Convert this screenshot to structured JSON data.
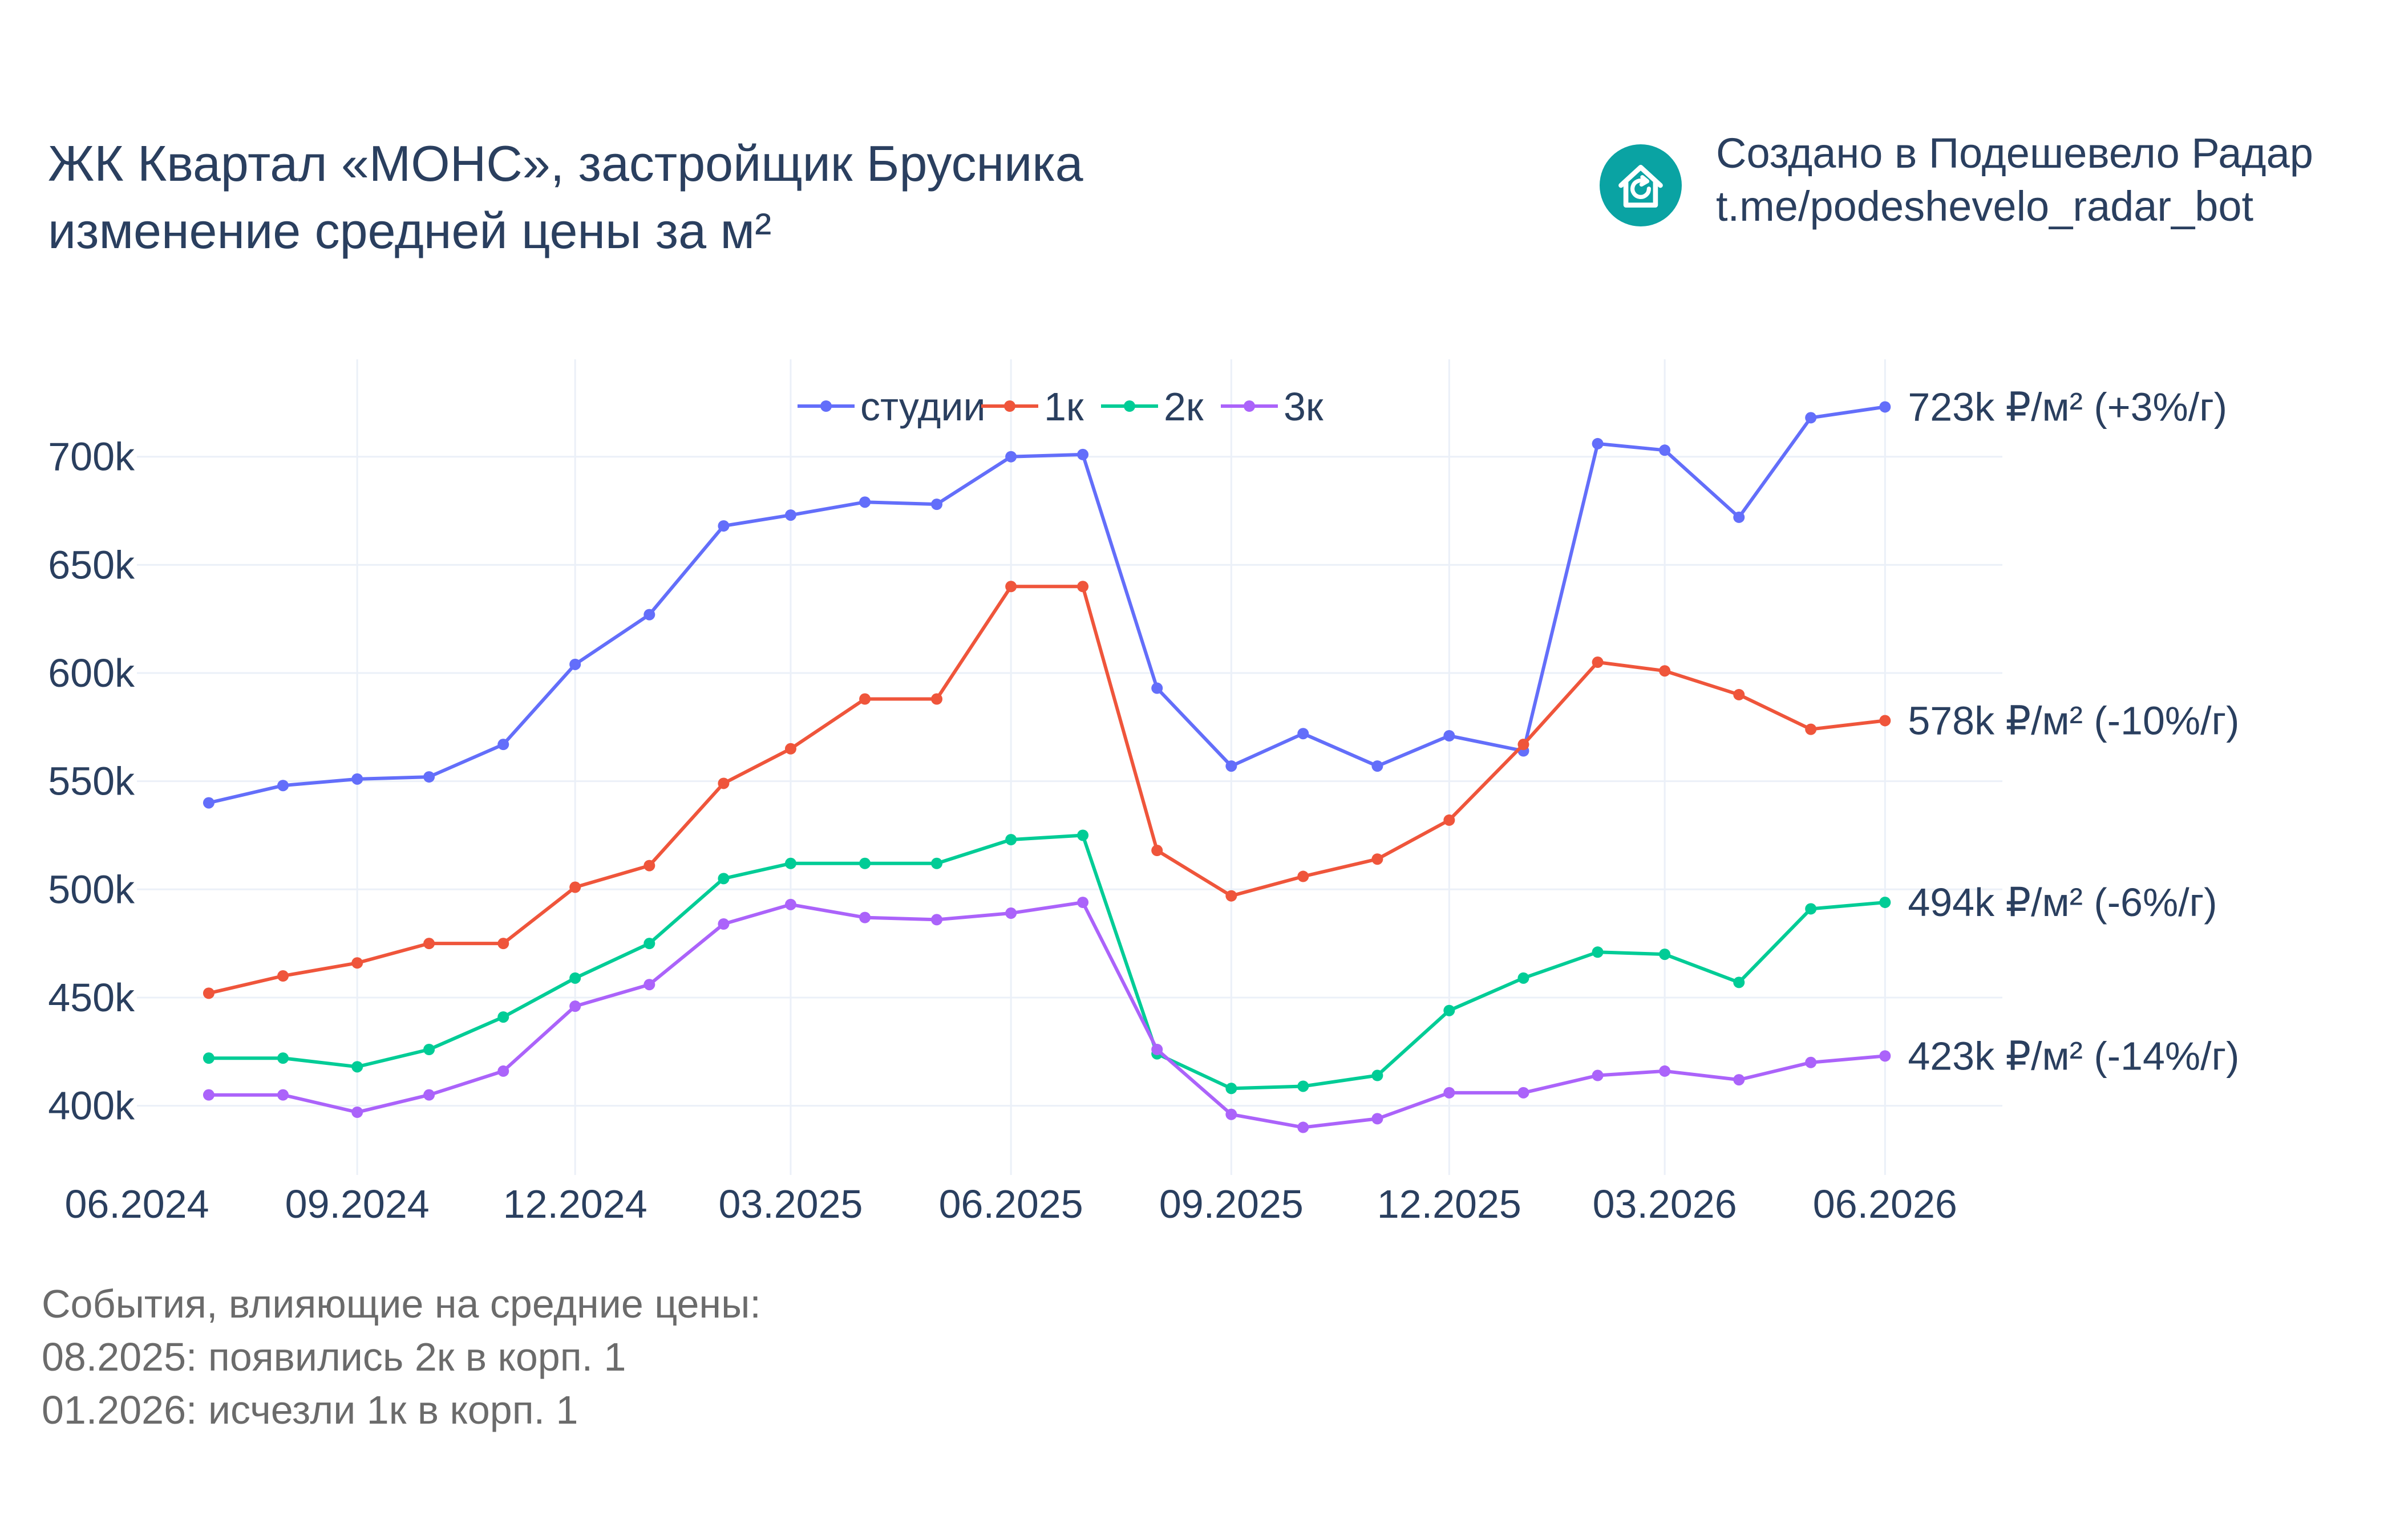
{
  "header": {
    "title_line1": "ЖК Квартал «МОНС», застройщик Брусника",
    "title_line2": "изменение средней цены за м²"
  },
  "branding": {
    "line1": "Создано в Подешевело Радар",
    "line2": "t.me/podeshevelo_radar_bot",
    "logo_icon": "house-refresh-icon",
    "logo_color": "#0aa3a3"
  },
  "events": {
    "heading": "События, влияющие на средние цены:",
    "items": [
      "08.2025: появились 2к в корп. 1",
      "01.2026: исчезли 1к в корп. 1"
    ]
  },
  "chart_data": {
    "type": "line",
    "x": [
      "2024-07-01",
      "2024-08-01",
      "2024-09-01",
      "2024-10-01",
      "2024-11-01",
      "2024-12-01",
      "2025-01-01",
      "2025-02-01",
      "2025-03-01",
      "2025-04-01",
      "2025-05-01",
      "2025-06-01",
      "2025-07-01",
      "2025-08-01",
      "2025-09-01",
      "2025-10-01",
      "2025-11-01",
      "2025-12-01",
      "2026-01-01",
      "2026-02-01",
      "2026-03-01",
      "2026-04-01",
      "2026-05-01",
      "2026-06-01"
    ],
    "xlim": [
      "2024-06-01",
      "2026-07-20"
    ],
    "ylim": [
      368000,
      745000
    ],
    "xticks": [
      {
        "date": "2024-06-01",
        "label": "06.2024"
      },
      {
        "date": "2024-09-01",
        "label": "09.2024"
      },
      {
        "date": "2024-12-01",
        "label": "12.2024"
      },
      {
        "date": "2025-03-01",
        "label": "03.2025"
      },
      {
        "date": "2025-06-01",
        "label": "06.2025"
      },
      {
        "date": "2025-09-01",
        "label": "09.2025"
      },
      {
        "date": "2025-12-01",
        "label": "12.2025"
      },
      {
        "date": "2026-03-01",
        "label": "03.2026"
      },
      {
        "date": "2026-06-01",
        "label": "06.2026"
      }
    ],
    "yticks": [
      {
        "value": 400000,
        "label": "400k"
      },
      {
        "value": 450000,
        "label": "450k"
      },
      {
        "value": 500000,
        "label": "500k"
      },
      {
        "value": 550000,
        "label": "550k"
      },
      {
        "value": 600000,
        "label": "600k"
      },
      {
        "value": 650000,
        "label": "650k"
      },
      {
        "value": 700000,
        "label": "700k"
      }
    ],
    "grid": true,
    "legend": "top-center",
    "series": [
      {
        "name": "студии",
        "color": "#636efa",
        "end_label": "723k ₽/м² (+3%/г)",
        "values": [
          540000,
          548000,
          551000,
          552000,
          567000,
          604000,
          627000,
          668000,
          673000,
          679000,
          678000,
          700000,
          701000,
          593000,
          557000,
          572000,
          557000,
          571000,
          564000,
          706000,
          703000,
          672000,
          718000,
          723000
        ]
      },
      {
        "name": "1к",
        "color": "#ef553b",
        "end_label": "578k ₽/м² (-10%/г)",
        "values": [
          452000,
          460000,
          466000,
          475000,
          475000,
          501000,
          511000,
          549000,
          565000,
          588000,
          588000,
          640000,
          640000,
          518000,
          497000,
          506000,
          514000,
          532000,
          567000,
          605000,
          601000,
          590000,
          574000,
          578000
        ]
      },
      {
        "name": "2к",
        "color": "#00cc96",
        "end_label": "494k ₽/м² (-6%/г)",
        "values": [
          422000,
          422000,
          418000,
          426000,
          441000,
          459000,
          475000,
          505000,
          512000,
          512000,
          512000,
          523000,
          525000,
          424000,
          408000,
          409000,
          414000,
          444000,
          459000,
          471000,
          470000,
          457000,
          491000,
          494000
        ]
      },
      {
        "name": "3к",
        "color": "#ab63fa",
        "end_label": "423k ₽/м² (-14%/г)",
        "values": [
          405000,
          405000,
          397000,
          405000,
          416000,
          446000,
          456000,
          484000,
          493000,
          487000,
          486000,
          489000,
          494000,
          426000,
          396000,
          390000,
          394000,
          406000,
          406000,
          414000,
          416000,
          412000,
          420000,
          423000
        ]
      }
    ]
  }
}
